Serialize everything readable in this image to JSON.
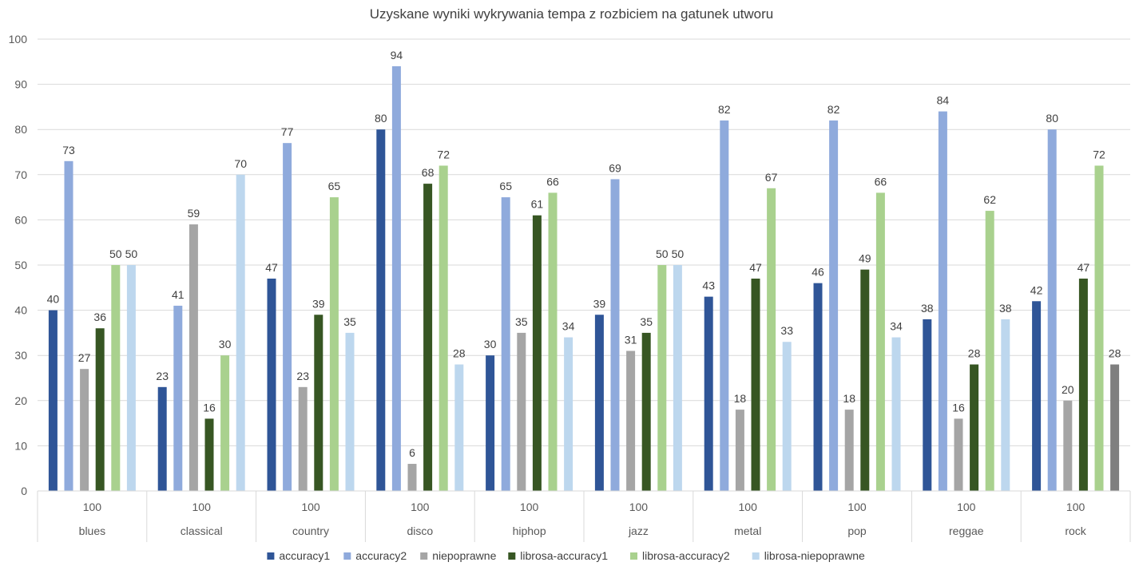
{
  "chart_data": {
    "type": "bar",
    "title": "Uzyskane wyniki wykrywania tempa z rozbiciem na gatunek utworu",
    "categories": [
      "blues",
      "classical",
      "country",
      "disco",
      "hiphop",
      "jazz",
      "metal",
      "pop",
      "reggae",
      "rock"
    ],
    "category_totals": [
      "100",
      "100",
      "100",
      "100",
      "100",
      "100",
      "100",
      "100",
      "100",
      "100"
    ],
    "ylim": [
      0,
      100
    ],
    "y_ticks": [
      0,
      10,
      20,
      30,
      40,
      50,
      60,
      70,
      80,
      90,
      100
    ],
    "grid": true,
    "legend_position": "bottom",
    "series": [
      {
        "name": "accuracy1",
        "color": "#2f5597",
        "values": [
          40,
          23,
          47,
          80,
          30,
          39,
          43,
          46,
          38,
          42
        ]
      },
      {
        "name": "accuracy2",
        "color": "#8faadc",
        "values": [
          73,
          41,
          77,
          94,
          65,
          69,
          82,
          82,
          84,
          80
        ]
      },
      {
        "name": "niepoprawne",
        "color": "#a5a5a5",
        "values": [
          27,
          59,
          23,
          6,
          35,
          31,
          18,
          18,
          16,
          20
        ]
      },
      {
        "name": "librosa-accuracy1",
        "color": "#375623",
        "values": [
          36,
          16,
          39,
          68,
          61,
          35,
          47,
          49,
          28,
          47
        ]
      },
      {
        "name": "librosa-accuracy2",
        "color": "#a9d18e",
        "values": [
          50,
          30,
          65,
          72,
          66,
          50,
          67,
          66,
          62,
          72
        ]
      },
      {
        "name": "librosa-niepoprawne",
        "color": "#bdd7ee",
        "values": [
          50,
          70,
          35,
          28,
          34,
          50,
          33,
          34,
          38,
          28
        ]
      }
    ],
    "series_color_overrides": [
      {
        "series": 5,
        "category": 9,
        "color": "#7f7f7f"
      }
    ]
  }
}
